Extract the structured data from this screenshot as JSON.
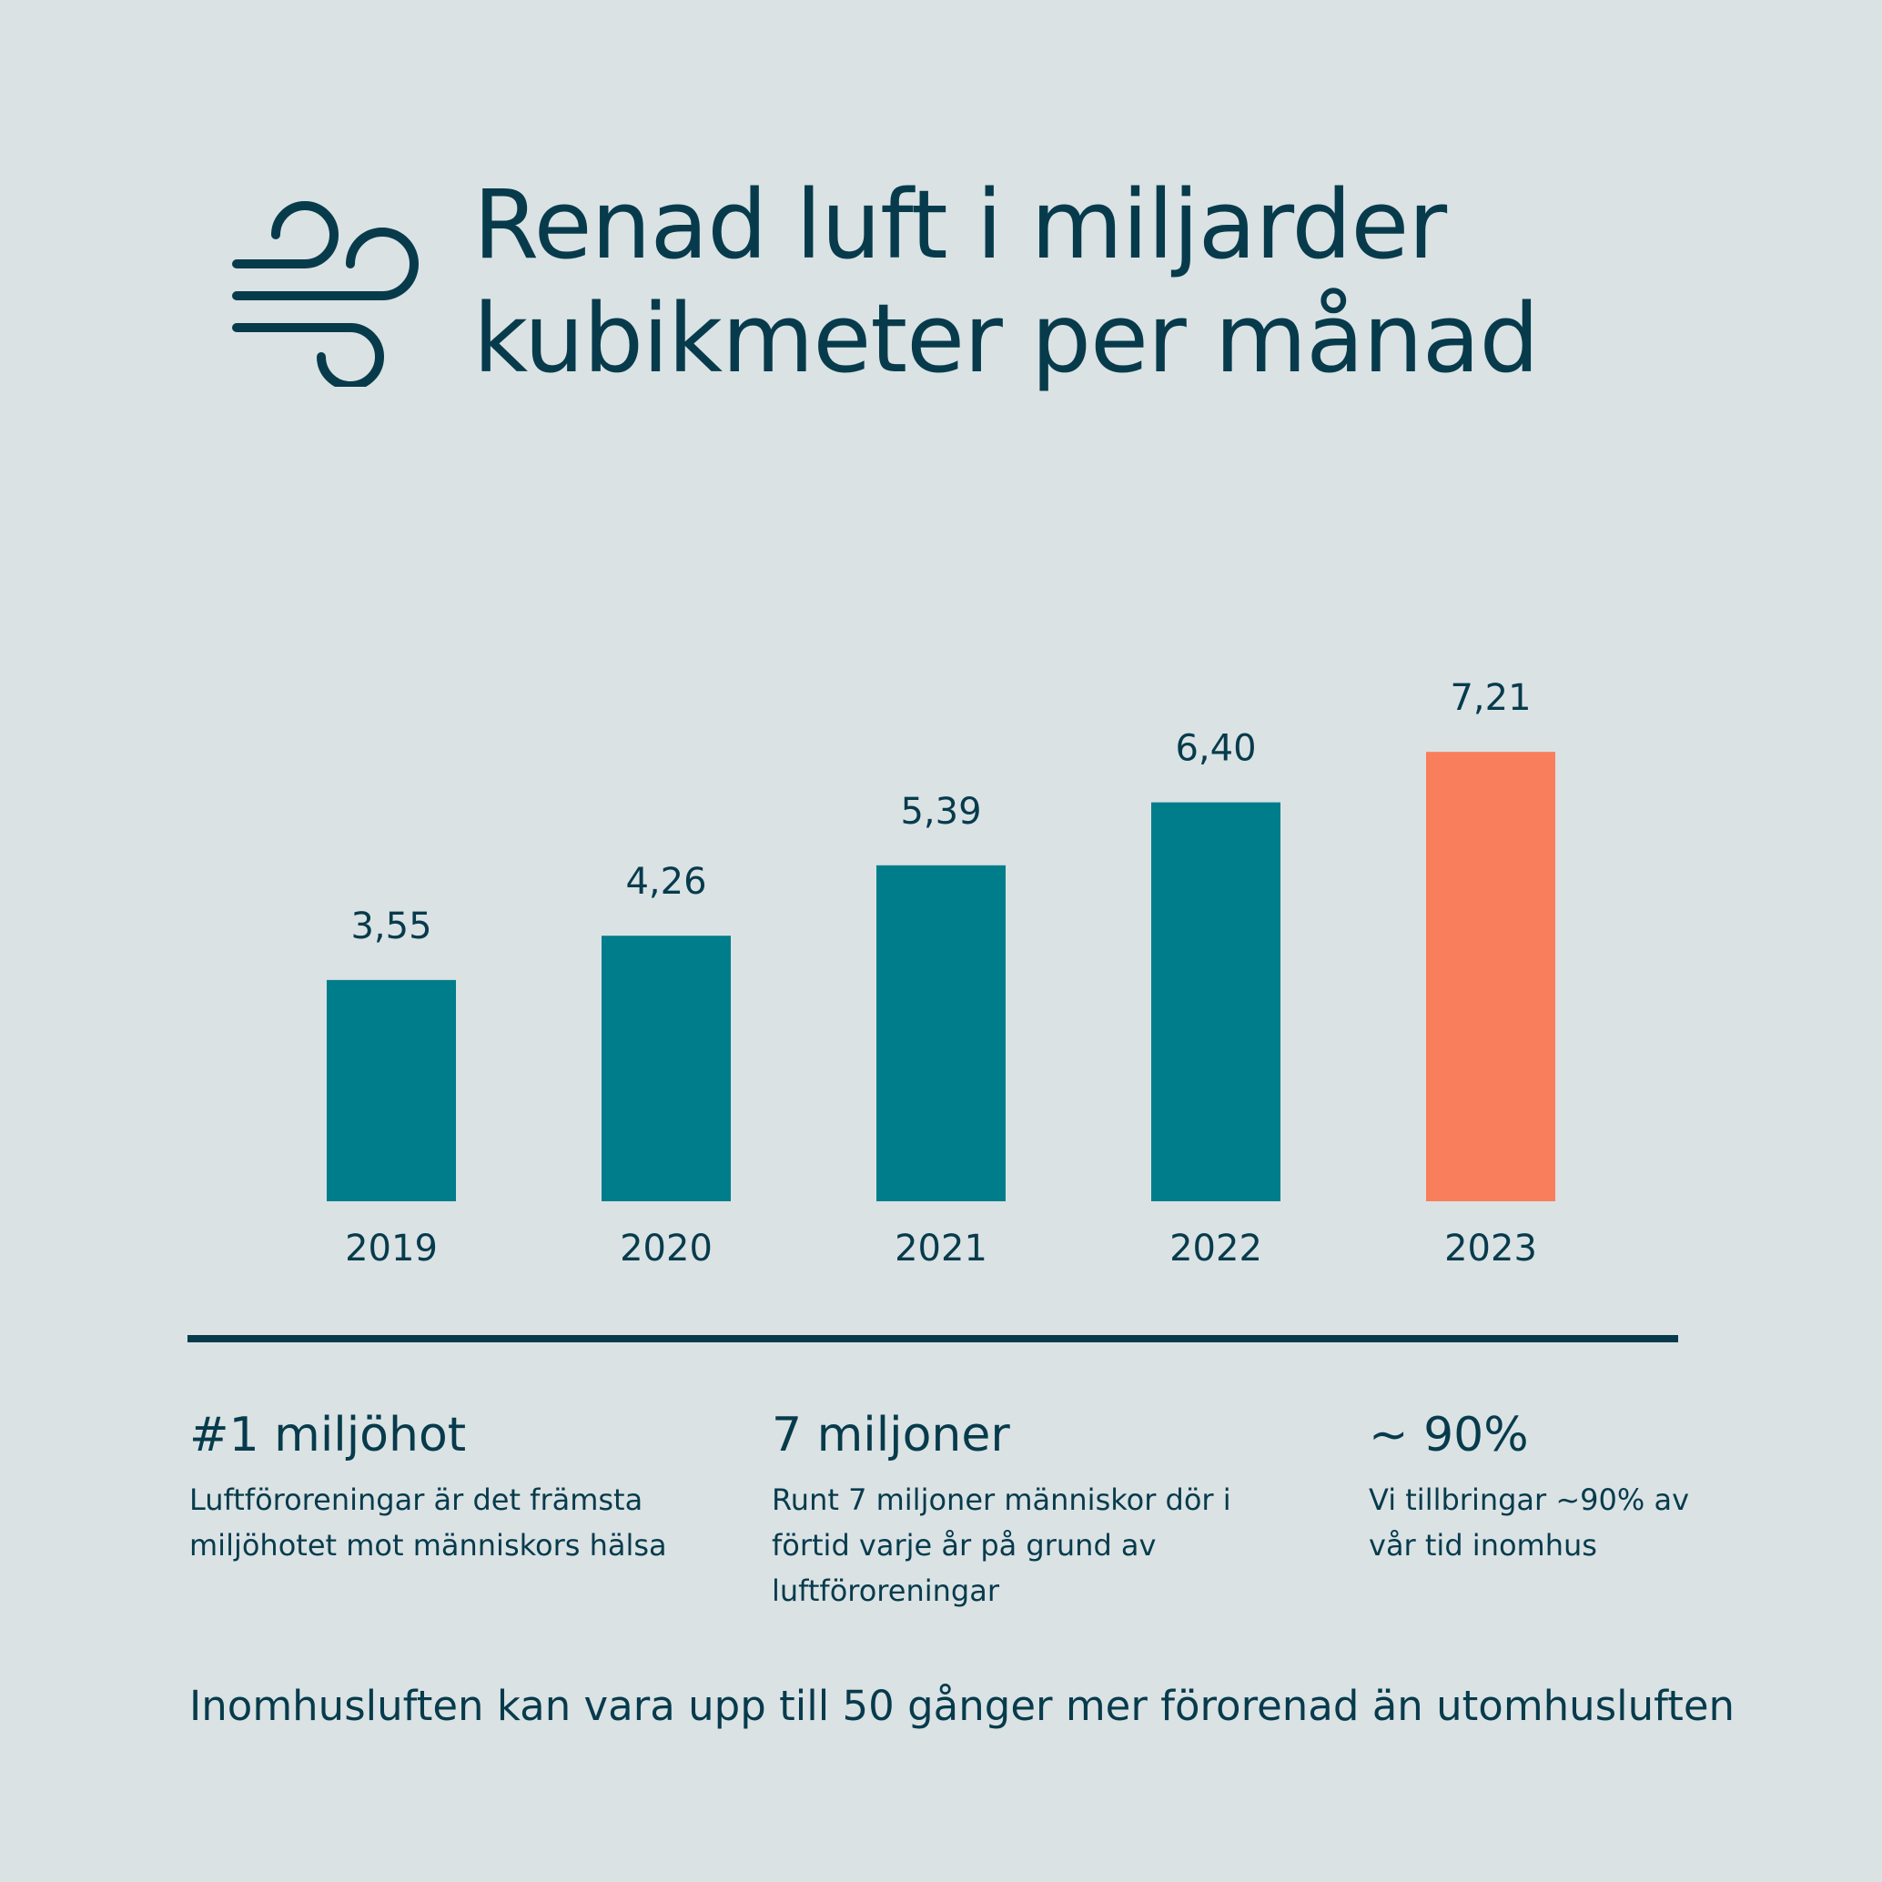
{
  "header": {
    "title_line1": "Renad luft i miljarder",
    "title_line2": "kubikmeter per månad",
    "icon": "wind-icon"
  },
  "chart_data": {
    "type": "bar",
    "title": "Renad luft i miljarder kubikmeter per månad",
    "xlabel": "",
    "ylabel": "",
    "categories": [
      "2019",
      "2020",
      "2021",
      "2022",
      "2023"
    ],
    "values": [
      3.55,
      4.26,
      5.39,
      6.4,
      7.21
    ],
    "value_labels": [
      "3,55",
      "4,26",
      "5,39",
      "6,40",
      "7,21"
    ],
    "ylim": [
      0,
      7.3
    ],
    "grid": false,
    "colors": {
      "default": "#007d8a",
      "highlight": "#f97e5b"
    },
    "highlight_index": 4
  },
  "stats": [
    {
      "heading": "#1 miljöhot",
      "text": "Luftföroreningar är det främsta miljöhotet mot människors hälsa"
    },
    {
      "heading": "7 miljoner",
      "text": "Runt 7 miljoner människor dör i förtid varje år på grund av luftföroreningar"
    },
    {
      "heading": "~ 90%",
      "text": "Vi tillbringar ~90% av vår tid inomhus"
    }
  ],
  "footer": {
    "note": "Inomhusluften kan vara upp till 50 gånger mer förorenad än utomhusluften"
  },
  "colors": {
    "background": "#dae2e4",
    "text": "#073b4c"
  }
}
